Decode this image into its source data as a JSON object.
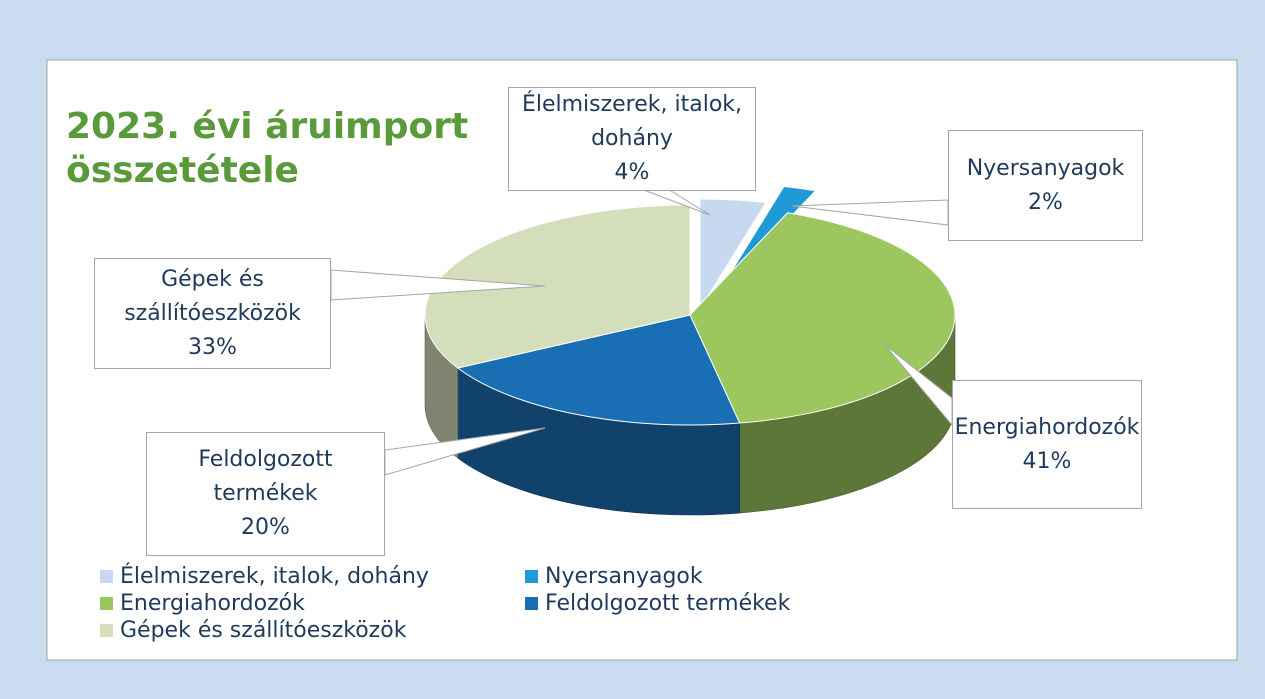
{
  "chart_data": {
    "type": "pie3d",
    "title": "2023. évi áruimport összetétele",
    "categories": [
      "Élelmiszerek, italok, dohány",
      "Nyersanyagok",
      "Energiahordozók",
      "Feldolgozott termékek",
      "Gépek és szállítóeszközök"
    ],
    "values": [
      4,
      2,
      41,
      20,
      33
    ],
    "value_labels": [
      "4%",
      "2%",
      "41%",
      "20%",
      "33%"
    ],
    "colors": [
      "#c6d9f0",
      "#1f9ad6",
      "#9bc75e",
      "#1a6eb4",
      "#d4deba"
    ]
  }
}
